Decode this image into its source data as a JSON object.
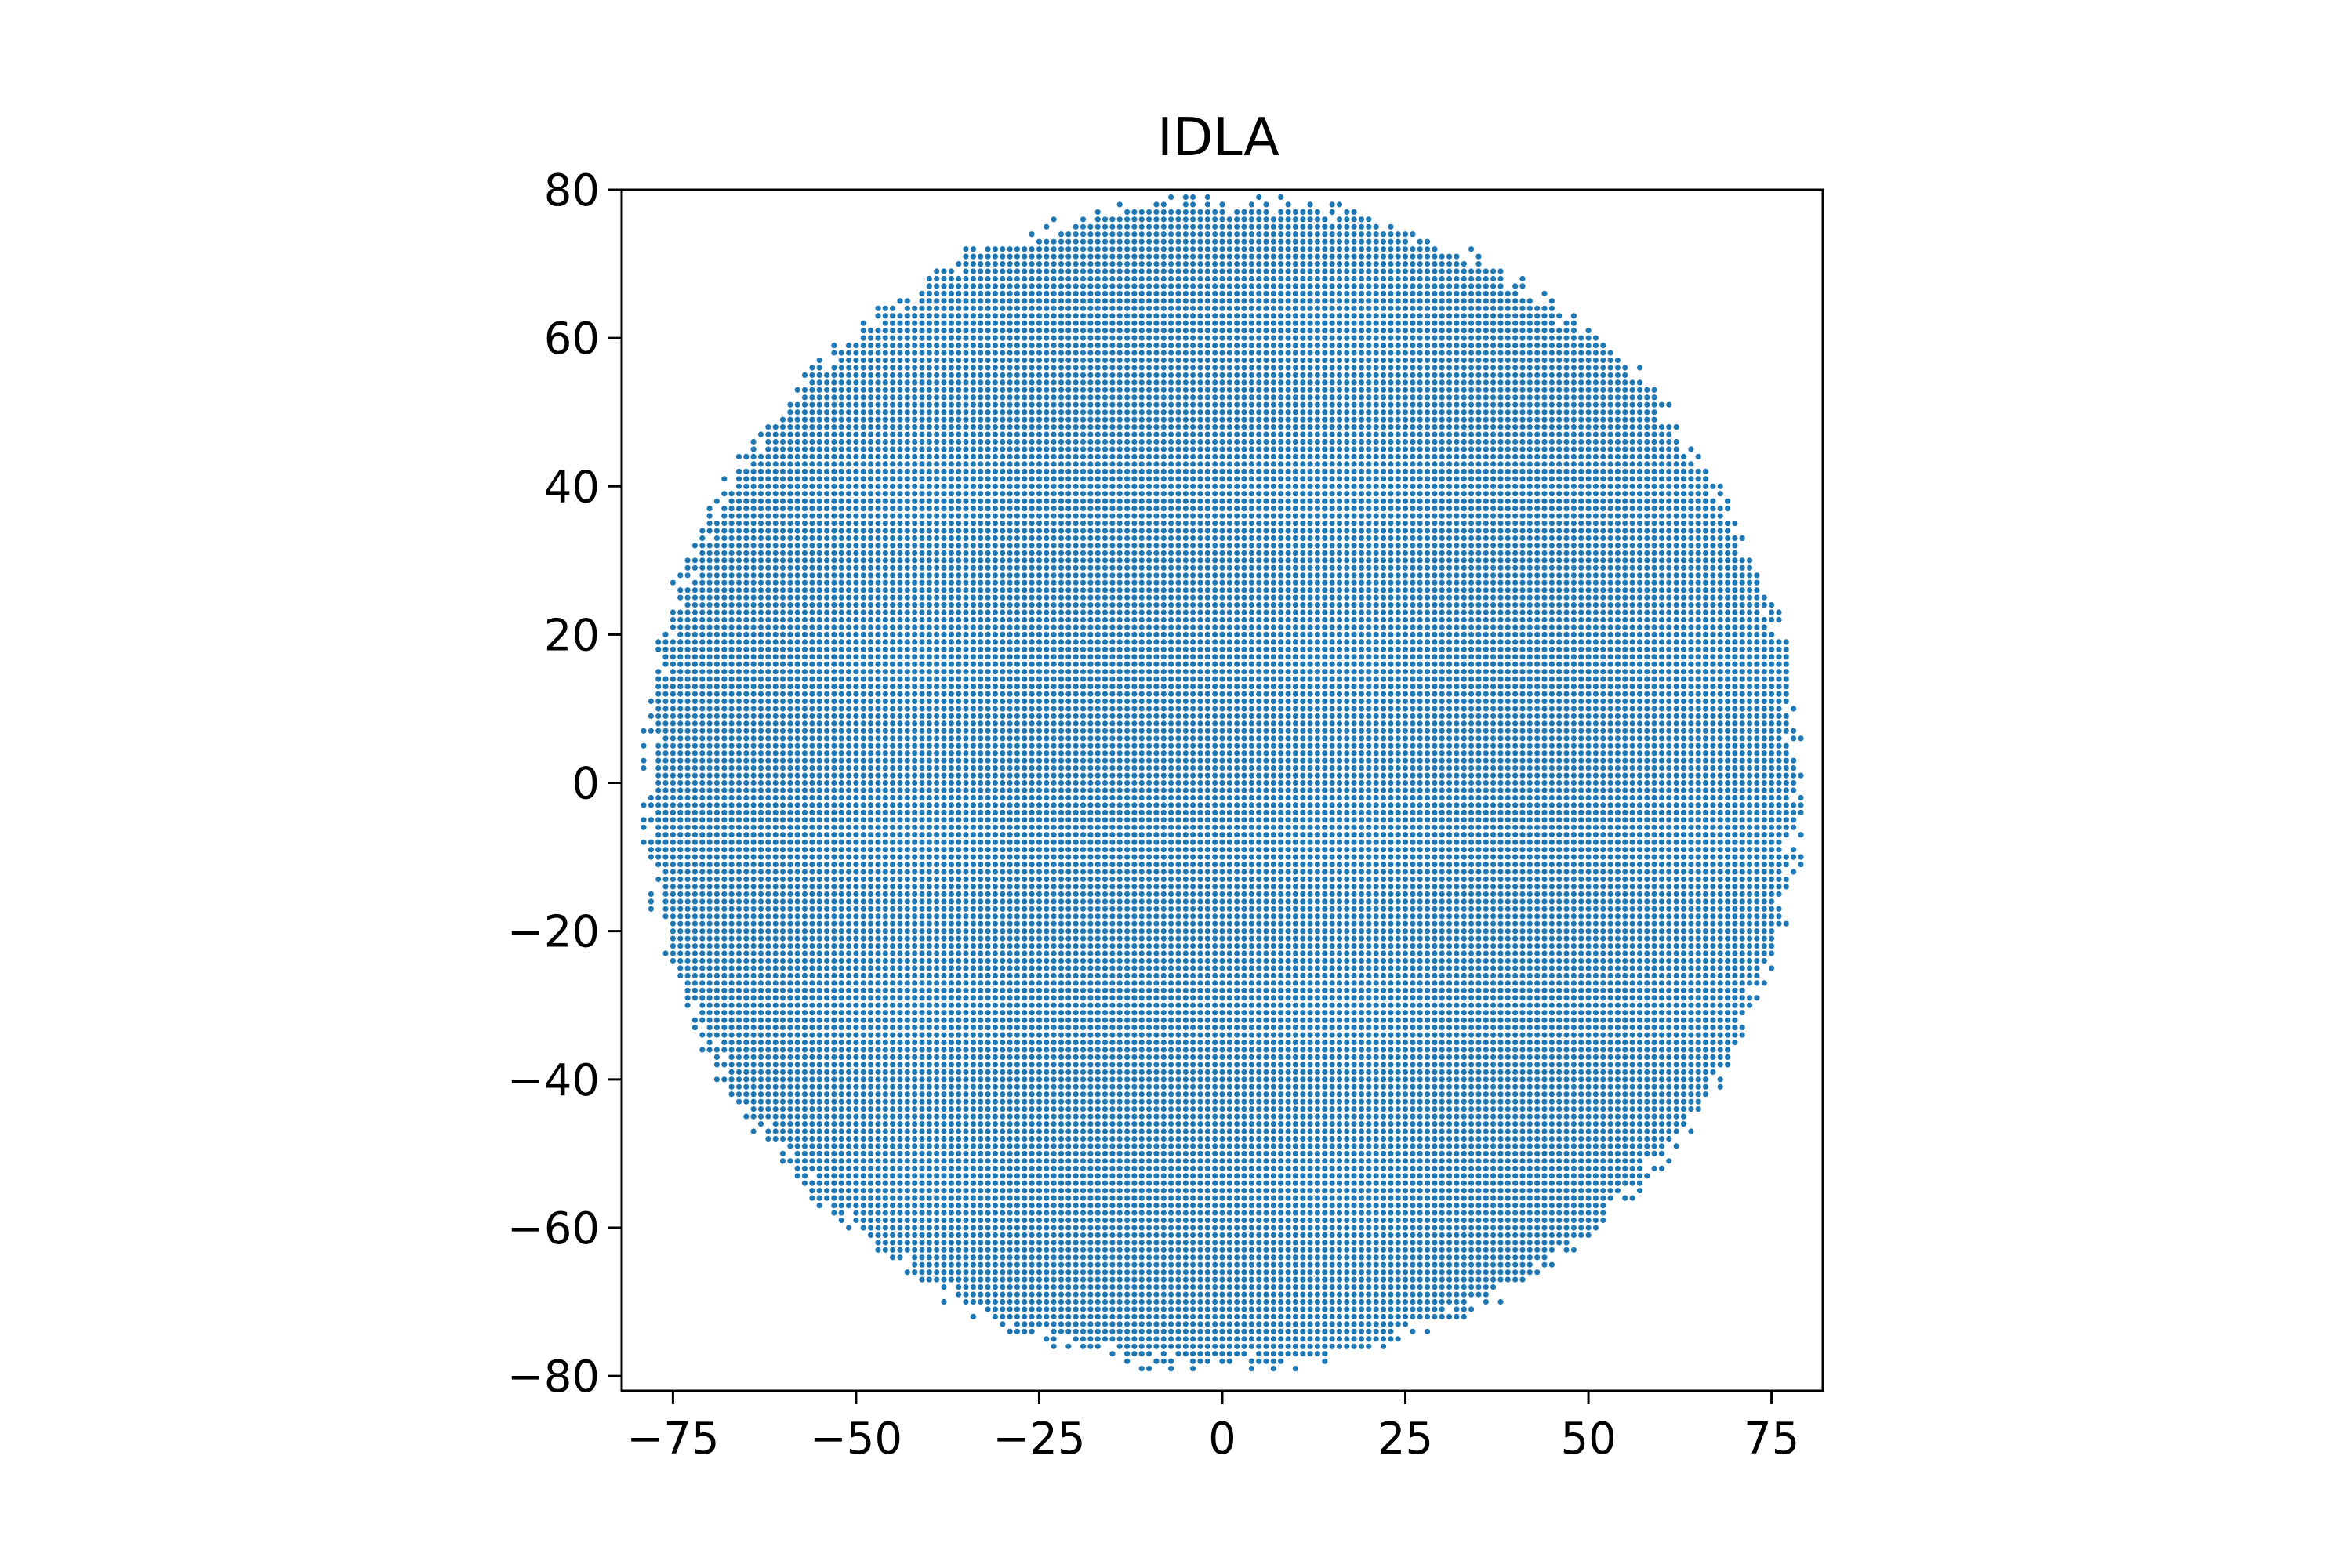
{
  "chart_data": {
    "type": "scatter",
    "title": "IDLA",
    "xlabel": "",
    "ylabel": "",
    "xlim": [
      -82,
      82
    ],
    "ylim": [
      -82,
      80
    ],
    "x_ticks": [
      {
        "value": -75,
        "label": "−75"
      },
      {
        "value": -50,
        "label": "−50"
      },
      {
        "value": -25,
        "label": "−25"
      },
      {
        "value": 0,
        "label": "0"
      },
      {
        "value": 25,
        "label": "25"
      },
      {
        "value": 50,
        "label": "50"
      },
      {
        "value": 75,
        "label": "75"
      }
    ],
    "y_ticks": [
      {
        "value": 80,
        "label": "80"
      },
      {
        "value": 60,
        "label": "60"
      },
      {
        "value": 40,
        "label": "40"
      },
      {
        "value": 20,
        "label": "20"
      },
      {
        "value": 0,
        "label": "0"
      },
      {
        "value": -20,
        "label": "−20"
      },
      {
        "value": -40,
        "label": "−40"
      },
      {
        "value": -60,
        "label": "−60"
      },
      {
        "value": -80,
        "label": "−80"
      }
    ],
    "series": [
      {
        "color": "#1f77b4",
        "marker": "dot",
        "description_of_values": "integer lattice points filling an approximately circular cluster centered at (0, 0) with radius about 80",
        "center": [
          0,
          0
        ],
        "radius": 80,
        "lattice_step": 1
      }
    ],
    "grid": false,
    "legend": "none"
  }
}
